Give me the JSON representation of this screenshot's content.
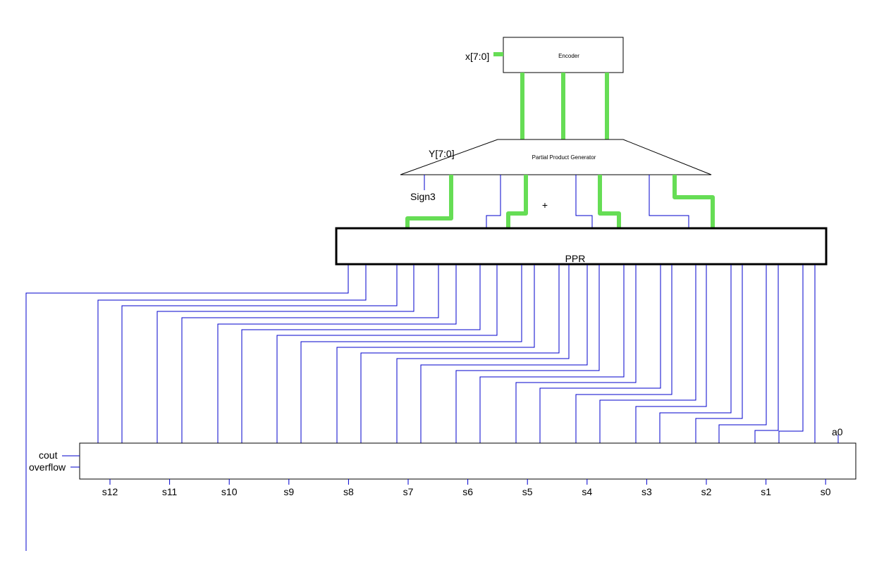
{
  "diagram": {
    "encoder": {
      "label": "Encoder"
    },
    "generator": {
      "label": "Partial Product Generator"
    },
    "ppr": {
      "label": "PPR"
    },
    "inputs": {
      "x": "x[7:0]",
      "y": "Y[7:0]",
      "sign": "Sign3",
      "plus": "+"
    },
    "adder": {
      "left_outputs": [
        "cout",
        "overflow"
      ],
      "carry_in": "a0",
      "sum_outputs": [
        "s12",
        "s11",
        "s10",
        "s9",
        "s8",
        "s7",
        "s6",
        "s5",
        "s4",
        "s3",
        "s2",
        "s1",
        "s0"
      ]
    },
    "colors": {
      "wire": "#0000cc",
      "bus": "#66dd55",
      "outline": "#000000",
      "background": "#ffffff"
    }
  }
}
